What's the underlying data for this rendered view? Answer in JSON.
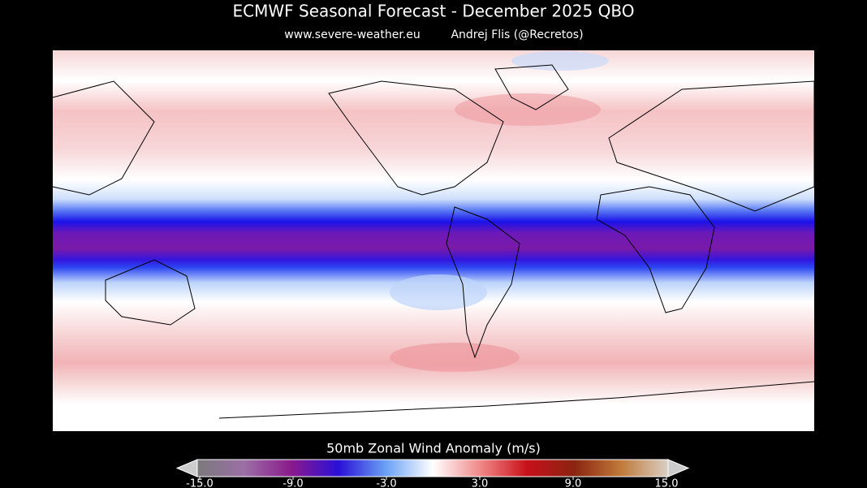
{
  "title": "ECMWF Seasonal Forecast - December 2025 QBO",
  "subtitle": {
    "website": "www.severe-weather.eu",
    "author": "Andrej Flis (@Recretos)"
  },
  "colorbar": {
    "label": "50mb Zonal Wind Anomaly (m/s)",
    "range": [
      -15,
      15
    ],
    "ticks": [
      {
        "value": -15,
        "label": "-15.0"
      },
      {
        "value": -9,
        "label": "-9.0"
      },
      {
        "value": -3,
        "label": "-3.0"
      },
      {
        "value": 3,
        "label": "3.0"
      },
      {
        "value": 9,
        "label": "9.0"
      },
      {
        "value": 15,
        "label": "15.0"
      }
    ]
  }
}
